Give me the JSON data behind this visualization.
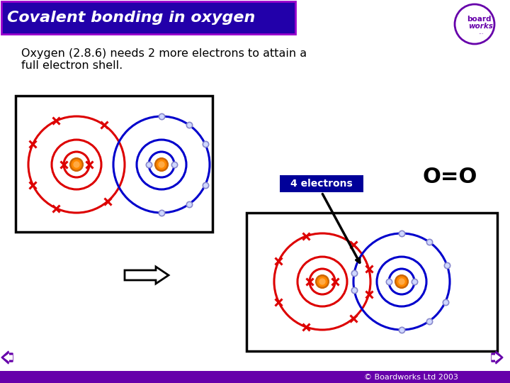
{
  "title": "Covalent bonding in oxygen",
  "subtitle": "Oxygen (2.8.6) needs 2 more electrons to attain a\nfull electron shell.",
  "background_color": "#ffffff",
  "title_bg": "#2200aa",
  "title_border": "#9900cc",
  "title_fg": "#ffffff",
  "red_color": "#dd0000",
  "blue_color": "#0000cc",
  "orange_dark": "#cc6600",
  "orange_mid": "#ff8800",
  "orange_light": "#ffaa44",
  "label_text": "4 electrons",
  "label_bg": "#000099",
  "formula": "O=O",
  "copyright": "© Boardworks Ltd 2003",
  "bottom_bar_color": "#6600aa",
  "nav_arrow_color": "#6600aa",
  "box_color": "#000000",
  "atom_bg": "#ffffff"
}
